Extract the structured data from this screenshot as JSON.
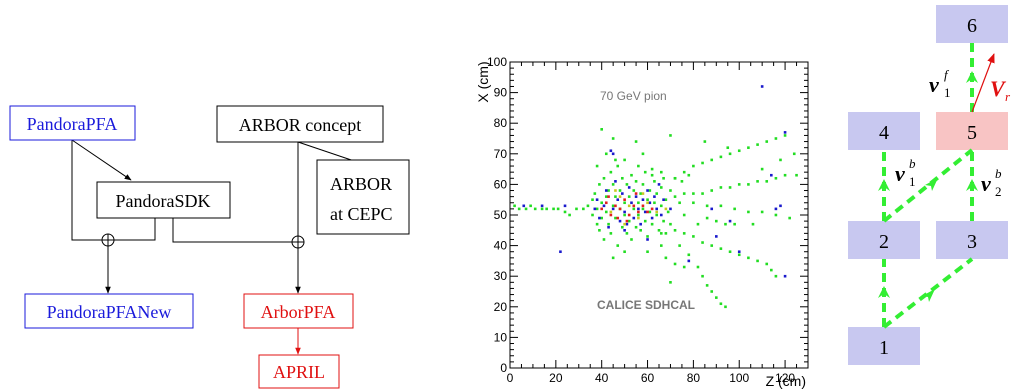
{
  "left_diagram": {
    "pandorapfa": "PandoraPFA",
    "pandorasdk": "PandoraSDK",
    "arbor_concept": "ARBOR concept",
    "arbor_cepc_line1": "ARBOR",
    "arbor_cepc_line2": "at CEPC",
    "pandorapfanew": "PandoraPFANew",
    "arborpfa": "ArborPFA",
    "april": "APRIL",
    "colors": {
      "blue": "#1a1adb",
      "red": "#e01010",
      "black": "#000000"
    }
  },
  "chart": {
    "annotation_top": "70 GeV pion",
    "annotation_bottom": "CALICE SDHCAL",
    "xlabel": "Z (cm)",
    "ylabel": "X (cm)",
    "xticks": [
      "0",
      "20",
      "40",
      "60",
      "80",
      "100",
      "120"
    ],
    "yticks": [
      "0",
      "10",
      "20",
      "30",
      "40",
      "50",
      "60",
      "70",
      "80",
      "90",
      "100"
    ]
  },
  "chart_data": {
    "type": "scatter",
    "xlabel": "Z (cm)",
    "ylabel": "X (cm)",
    "xlim": [
      0,
      130
    ],
    "ylim": [
      0,
      100
    ],
    "grid": false,
    "annotations": [
      "70 GeV pion",
      "CALICE SDHCAL"
    ],
    "series": [
      {
        "color": "#22dd22",
        "points": [
          [
            2,
            53
          ],
          [
            4,
            52
          ],
          [
            7,
            52
          ],
          [
            9,
            53
          ],
          [
            11,
            52
          ],
          [
            14,
            52
          ],
          [
            16,
            52
          ],
          [
            19,
            52
          ],
          [
            21,
            52
          ],
          [
            24,
            51
          ],
          [
            26,
            50
          ],
          [
            29,
            52
          ],
          [
            32,
            52
          ],
          [
            34,
            53
          ],
          [
            36,
            55
          ],
          [
            36,
            50
          ],
          [
            37,
            57
          ],
          [
            38,
            52
          ],
          [
            38,
            47
          ],
          [
            39,
            60
          ],
          [
            39,
            45
          ],
          [
            40,
            54
          ],
          [
            40,
            49
          ],
          [
            41,
            62
          ],
          [
            41,
            42
          ],
          [
            42,
            56
          ],
          [
            42,
            51
          ],
          [
            43,
            58
          ],
          [
            43,
            47
          ],
          [
            44,
            64
          ],
          [
            44,
            44
          ],
          [
            45,
            53
          ],
          [
            45,
            60
          ],
          [
            46,
            49
          ],
          [
            46,
            56
          ],
          [
            47,
            40
          ],
          [
            47,
            66
          ],
          [
            48,
            52
          ],
          [
            48,
            58
          ],
          [
            49,
            46
          ],
          [
            49,
            62
          ],
          [
            50,
            54
          ],
          [
            50,
            50
          ],
          [
            51,
            44
          ],
          [
            51,
            60
          ],
          [
            52,
            56
          ],
          [
            52,
            48
          ],
          [
            53,
            63
          ],
          [
            53,
            42
          ],
          [
            54,
            52
          ],
          [
            54,
            58
          ],
          [
            55,
            46
          ],
          [
            55,
            61
          ],
          [
            56,
            54
          ],
          [
            56,
            50
          ],
          [
            57,
            57
          ],
          [
            57,
            45
          ],
          [
            58,
            52
          ],
          [
            58,
            60
          ],
          [
            59,
            48
          ],
          [
            59,
            64
          ],
          [
            60,
            55
          ],
          [
            60,
            43
          ],
          [
            61,
            51
          ],
          [
            61,
            58
          ],
          [
            62,
            47
          ],
          [
            63,
            54
          ],
          [
            63,
            61
          ],
          [
            64,
            50
          ],
          [
            64,
            57
          ],
          [
            65,
            45
          ],
          [
            66,
            53
          ],
          [
            66,
            59
          ],
          [
            67,
            48
          ],
          [
            67,
            62
          ],
          [
            68,
            55
          ],
          [
            68,
            44
          ],
          [
            69,
            51
          ],
          [
            70,
            58
          ],
          [
            70,
            47
          ],
          [
            40,
            78
          ],
          [
            45,
            75
          ],
          [
            50,
            68
          ],
          [
            56,
            66
          ],
          [
            62,
            63
          ],
          [
            66,
            64
          ],
          [
            72,
            62
          ],
          [
            75,
            61
          ],
          [
            78,
            63
          ],
          [
            72,
            56
          ],
          [
            76,
            57
          ],
          [
            80,
            57
          ],
          [
            84,
            57
          ],
          [
            88,
            58
          ],
          [
            92,
            59
          ],
          [
            96,
            59
          ],
          [
            100,
            60
          ],
          [
            104,
            60
          ],
          [
            108,
            61
          ],
          [
            112,
            61
          ],
          [
            116,
            62
          ],
          [
            120,
            63
          ],
          [
            72,
            62
          ],
          [
            76,
            64
          ],
          [
            80,
            66
          ],
          [
            84,
            67
          ],
          [
            88,
            68
          ],
          [
            92,
            69
          ],
          [
            96,
            70
          ],
          [
            100,
            71
          ],
          [
            104,
            72
          ],
          [
            108,
            73
          ],
          [
            112,
            74
          ],
          [
            116,
            75
          ],
          [
            120,
            76
          ],
          [
            74,
            54
          ],
          [
            80,
            54
          ],
          [
            86,
            53
          ],
          [
            92,
            53
          ],
          [
            98,
            52
          ],
          [
            104,
            51
          ],
          [
            110,
            51
          ],
          [
            116,
            50
          ],
          [
            122,
            49
          ],
          [
            72,
            45
          ],
          [
            76,
            44
          ],
          [
            80,
            43
          ],
          [
            84,
            41
          ],
          [
            88,
            40
          ],
          [
            92,
            39
          ],
          [
            96,
            38
          ],
          [
            100,
            37
          ],
          [
            104,
            36
          ],
          [
            108,
            35
          ],
          [
            112,
            34
          ],
          [
            114,
            32
          ],
          [
            116,
            30
          ],
          [
            74,
            40
          ],
          [
            78,
            37
          ],
          [
            82,
            33
          ],
          [
            84,
            30
          ],
          [
            86,
            27
          ],
          [
            88,
            25
          ],
          [
            90,
            23
          ],
          [
            92,
            21
          ],
          [
            94,
            20
          ],
          [
            45,
            36
          ],
          [
            50,
            38
          ],
          [
            60,
            38
          ],
          [
            66,
            40
          ],
          [
            68,
            36
          ],
          [
            72,
            34
          ],
          [
            76,
            33
          ],
          [
            70,
            28
          ],
          [
            66,
            44
          ],
          [
            55,
            74
          ],
          [
            70,
            76
          ],
          [
            85,
            74
          ],
          [
            95,
            72
          ],
          [
            110,
            65
          ],
          [
            118,
            68
          ],
          [
            124,
            70
          ],
          [
            125,
            63
          ],
          [
            106,
            47
          ],
          [
            98,
            47
          ],
          [
            82,
            47
          ],
          [
            76,
            50
          ],
          [
            86,
            49
          ],
          [
            90,
            48
          ],
          [
            94,
            47
          ],
          [
            62,
            65
          ],
          [
            46,
            68
          ],
          [
            42,
            70
          ],
          [
            38,
            66
          ],
          [
            58,
            70
          ]
        ]
      },
      {
        "color": "#1a1acc",
        "points": [
          [
            6,
            53
          ],
          [
            14,
            53
          ],
          [
            22,
            38
          ],
          [
            24,
            53
          ],
          [
            37,
            52
          ],
          [
            38,
            55
          ],
          [
            39,
            49
          ],
          [
            41,
            53
          ],
          [
            42,
            58
          ],
          [
            43,
            46
          ],
          [
            45,
            52
          ],
          [
            46,
            61
          ],
          [
            47,
            55
          ],
          [
            48,
            48
          ],
          [
            49,
            57
          ],
          [
            50,
            51
          ],
          [
            51,
            47
          ],
          [
            52,
            59
          ],
          [
            53,
            54
          ],
          [
            54,
            49
          ],
          [
            55,
            56
          ],
          [
            56,
            52
          ],
          [
            57,
            47
          ],
          [
            58,
            55
          ],
          [
            59,
            51
          ],
          [
            60,
            58
          ],
          [
            61,
            54
          ],
          [
            62,
            49
          ],
          [
            63,
            56
          ],
          [
            64,
            52
          ],
          [
            65,
            60
          ],
          [
            66,
            50
          ],
          [
            67,
            55
          ],
          [
            44,
            71
          ],
          [
            45,
            70
          ],
          [
            50,
            45
          ],
          [
            60,
            42
          ],
          [
            70,
            52
          ],
          [
            88,
            52
          ],
          [
            96,
            48
          ],
          [
            110,
            92
          ],
          [
            114,
            63
          ],
          [
            116,
            52
          ],
          [
            118,
            53
          ],
          [
            120,
            77
          ],
          [
            78,
            35
          ],
          [
            90,
            43
          ],
          [
            100,
            38
          ],
          [
            120,
            30
          ]
        ]
      },
      {
        "color": "#e02020",
        "points": [
          [
            40,
            52
          ],
          [
            42,
            54
          ],
          [
            44,
            50
          ],
          [
            46,
            53
          ],
          [
            48,
            52
          ],
          [
            50,
            55
          ],
          [
            52,
            50
          ],
          [
            54,
            53
          ],
          [
            56,
            51
          ],
          [
            58,
            53
          ],
          [
            60,
            51
          ],
          [
            62,
            52
          ],
          [
            43,
            56
          ],
          [
            47,
            49
          ],
          [
            51,
            48
          ],
          [
            55,
            57
          ]
        ]
      },
      {
        "color": "#c8c820",
        "points": [
          [
            44,
            51
          ],
          [
            48,
            56
          ],
          [
            52,
            53
          ],
          [
            56,
            49
          ],
          [
            60,
            54
          ],
          [
            64,
            51
          ],
          [
            50,
            47
          ],
          [
            58,
            57
          ],
          [
            68,
            52
          ],
          [
            46,
            58
          ]
        ]
      }
    ]
  },
  "right_diagram": {
    "nodes": [
      "1",
      "2",
      "3",
      "4",
      "5",
      "6"
    ],
    "v1f_base": "v",
    "v1f_sub": "1",
    "v1f_sup": "f",
    "v1b_base": "v",
    "v1b_sub": "1",
    "v1b_sup": "b",
    "v2b_base": "v",
    "v2b_sub": "2",
    "v2b_sup": "b",
    "vr_base": "V",
    "vr_sub": "r",
    "colors": {
      "node": "#c8c8f0",
      "node_highlight": "#f8c4c4",
      "arrow": "#33ee33",
      "vr": "#e01010"
    }
  }
}
